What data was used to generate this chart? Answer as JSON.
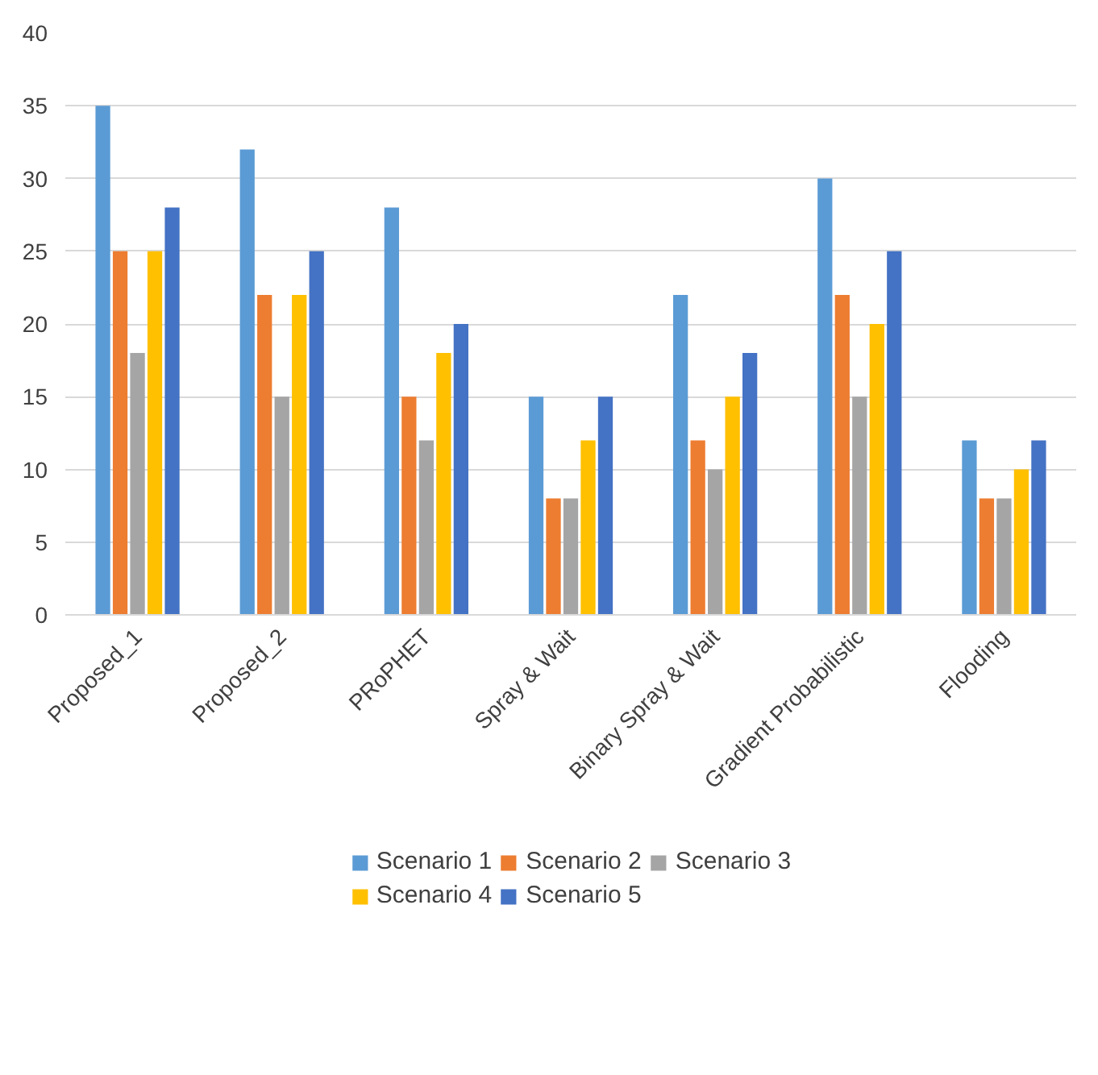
{
  "chart_data": {
    "type": "bar",
    "categories": [
      "Proposed_1",
      "Proposed_2",
      "PRoPHET",
      "Spray & Wait",
      "Binary Spray & Wait",
      "Gradient Probabilistic",
      "Flooding"
    ],
    "series": [
      {
        "name": "Scenario 1",
        "color": "#5b9bd5",
        "values": [
          35,
          32,
          28,
          15,
          22,
          30,
          12
        ]
      },
      {
        "name": "Scenario 2",
        "color": "#ed7d31",
        "values": [
          25,
          22,
          15,
          8,
          12,
          22,
          8
        ]
      },
      {
        "name": "Scenario 3",
        "color": "#a5a5a5",
        "values": [
          18,
          15,
          12,
          8,
          10,
          15,
          8
        ]
      },
      {
        "name": "Scenario 4",
        "color": "#ffc000",
        "values": [
          25,
          22,
          18,
          12,
          15,
          20,
          10
        ]
      },
      {
        "name": "Scenario 5",
        "color": "#4472c4",
        "values": [
          28,
          25,
          20,
          15,
          18,
          25,
          12
        ]
      }
    ],
    "ylim": [
      0,
      40
    ],
    "yticks": [
      0,
      5,
      10,
      15,
      20,
      25,
      30,
      35,
      40
    ],
    "grid": "y",
    "legend": "bottom"
  }
}
